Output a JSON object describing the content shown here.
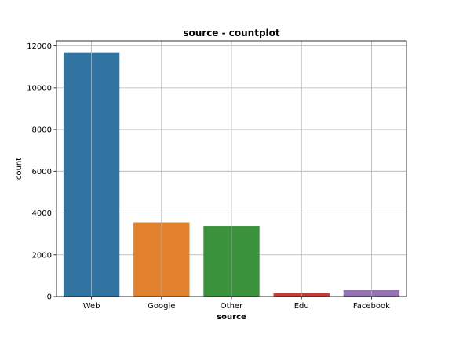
{
  "chart_data": {
    "type": "bar",
    "title": "source - countplot",
    "xlabel": "source",
    "ylabel": "count",
    "categories": [
      "Web",
      "Google",
      "Other",
      "Edu",
      "Facebook"
    ],
    "values": [
      11700,
      3550,
      3380,
      160,
      300
    ],
    "colors": [
      "#3274a1",
      "#e1812c",
      "#3a923a",
      "#c03d3e",
      "#9372b2"
    ],
    "ylim": [
      0,
      12250
    ],
    "yticks": [
      0,
      2000,
      4000,
      6000,
      8000,
      10000,
      12000
    ],
    "grid": true
  }
}
